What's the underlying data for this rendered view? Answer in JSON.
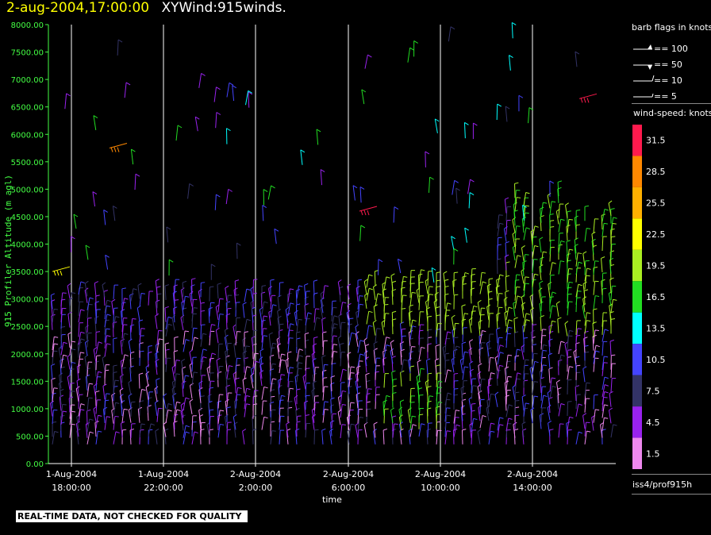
{
  "title": {
    "timestamp": "2-aug-2004,17:00:00",
    "name": "XYWind:915winds."
  },
  "chart_data": {
    "type": "scatter",
    "subtype": "wind-barb time-height",
    "ylabel": "915 Profiler Altitude (m agl)",
    "xlabel": "time",
    "ylim": [
      0,
      8000
    ],
    "xlim_hours": "1-Aug-2004 16:30 to 2-Aug-2004 17:00",
    "y_ticks": [
      "0.00",
      "500.00",
      "1000.00",
      "1500.00",
      "2000.00",
      "2500.00",
      "3000.00",
      "3500.00",
      "4000.00",
      "4500.00",
      "5000.00",
      "5500.00",
      "6000.00",
      "6500.00",
      "7000.00",
      "7500.00",
      "8000.00"
    ],
    "x_ticks": [
      {
        "date": "1-Aug-2004",
        "time": "18:00:00"
      },
      {
        "date": "1-Aug-2004",
        "time": "22:00:00"
      },
      {
        "date": "2-Aug-2004",
        "time": "2:00:00"
      },
      {
        "date": "2-Aug-2004",
        "time": "6:00:00"
      },
      {
        "date": "2-Aug-2004",
        "time": "10:00:00"
      },
      {
        "date": "2-Aug-2004",
        "time": "14:00:00"
      }
    ],
    "grid": "vertical lines at x ticks",
    "colorbar": {
      "title": "wind-speed: knots",
      "levels": [
        "31.5",
        "28.5",
        "25.5",
        "22.5",
        "19.5",
        "16.5",
        "13.5",
        "10.5",
        "7.5",
        "4.5",
        "1.5"
      ],
      "colors": [
        "#ff1a4d",
        "#ff8800",
        "#ffb000",
        "#ffff00",
        "#aaee22",
        "#22dd22",
        "#00ffff",
        "#4444ff",
        "#333366",
        "#9922ee",
        "#ee88ee"
      ]
    },
    "barb_legend": {
      "title": "barb flags in knots",
      "items": [
        "== 100",
        "== 50",
        "== 10",
        "== 5"
      ]
    }
  },
  "footer": {
    "quality_note": "REAL-TIME DATA, NOT CHECKED FOR QUALITY",
    "source": "iss4/prof915h"
  },
  "colors": {
    "axis": "#44ff44",
    "grid": "#ffffff",
    "timestamp": "#ffff00"
  }
}
